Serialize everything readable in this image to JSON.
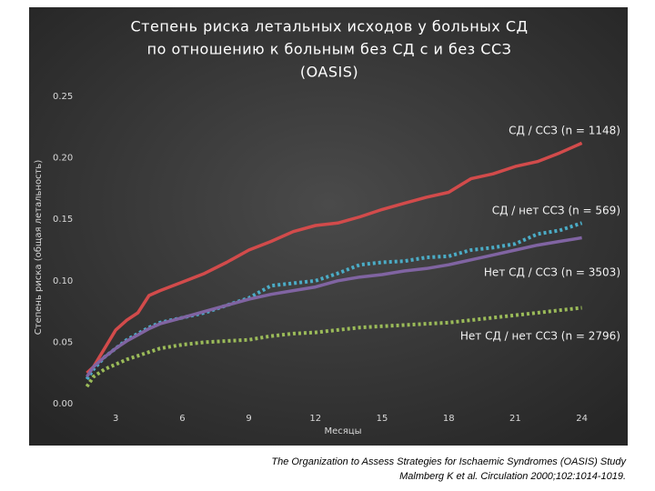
{
  "chart_data": {
    "type": "line",
    "title": [
      "Степень риска летальных исходов у больных СД",
      "по отношению к больным без СД с и без ССЗ",
      "(OASIS)"
    ],
    "y_label": "Степень риска (общая летальность)",
    "x_label": "Месяцы",
    "x": [
      1.7,
      2,
      2.5,
      3,
      3.5,
      4,
      4.5,
      5,
      6,
      7,
      8,
      9,
      10,
      11,
      12,
      13,
      14,
      15,
      16,
      17,
      18,
      19,
      20,
      21,
      22,
      23,
      24
    ],
    "series": [
      {
        "name": "СД / ССЗ (n = 1148)",
        "color": "#d24b4b",
        "style": "solid",
        "values": [
          0.025,
          0.03,
          0.045,
          0.06,
          0.068,
          0.074,
          0.088,
          0.092,
          0.099,
          0.106,
          0.115,
          0.125,
          0.132,
          0.14,
          0.145,
          0.147,
          0.152,
          0.158,
          0.163,
          0.168,
          0.172,
          0.183,
          0.187,
          0.193,
          0.197,
          0.204,
          0.212
        ]
      },
      {
        "name": "СД / нет ССЗ (n = 569)",
        "color": "#4bacc6",
        "style": "dotted",
        "values": [
          0.02,
          0.028,
          0.038,
          0.045,
          0.052,
          0.057,
          0.062,
          0.066,
          0.07,
          0.074,
          0.08,
          0.086,
          0.096,
          0.098,
          0.1,
          0.106,
          0.113,
          0.115,
          0.116,
          0.119,
          0.12,
          0.125,
          0.127,
          0.13,
          0.138,
          0.141,
          0.147
        ]
      },
      {
        "name": "Нет СД / ССЗ (n = 3503)",
        "color": "#8064a2",
        "style": "solid",
        "values": [
          0.022,
          0.03,
          0.038,
          0.045,
          0.051,
          0.056,
          0.061,
          0.065,
          0.07,
          0.075,
          0.08,
          0.085,
          0.089,
          0.092,
          0.095,
          0.1,
          0.103,
          0.105,
          0.108,
          0.11,
          0.113,
          0.117,
          0.121,
          0.125,
          0.129,
          0.132,
          0.135
        ]
      },
      {
        "name": "Нет СД / нет ССЗ (n = 2796)",
        "color": "#9bbb59",
        "style": "dotted",
        "values": [
          0.014,
          0.022,
          0.028,
          0.032,
          0.036,
          0.039,
          0.042,
          0.045,
          0.048,
          0.05,
          0.051,
          0.052,
          0.055,
          0.057,
          0.058,
          0.06,
          0.062,
          0.063,
          0.064,
          0.065,
          0.066,
          0.068,
          0.07,
          0.072,
          0.074,
          0.076,
          0.078
        ]
      }
    ],
    "xlim": [
      0,
      25
    ],
    "xticks": [
      3,
      6,
      9,
      12,
      15,
      18,
      21,
      24
    ],
    "ylim": [
      0,
      0.25
    ],
    "yticks": [
      {
        "value": 0,
        "label": "0.00"
      },
      0.05,
      {
        "value": 0.1,
        "label": "0.10"
      },
      0.15,
      {
        "value": 0.2,
        "label": "0.20"
      },
      0.25
    ],
    "source": [
      "The Organization to Assess Strategies for Ischaemic Syndromes (OASIS) Study",
      "Malmberg K et al. Circulation 2000;102:1014-1019."
    ]
  }
}
